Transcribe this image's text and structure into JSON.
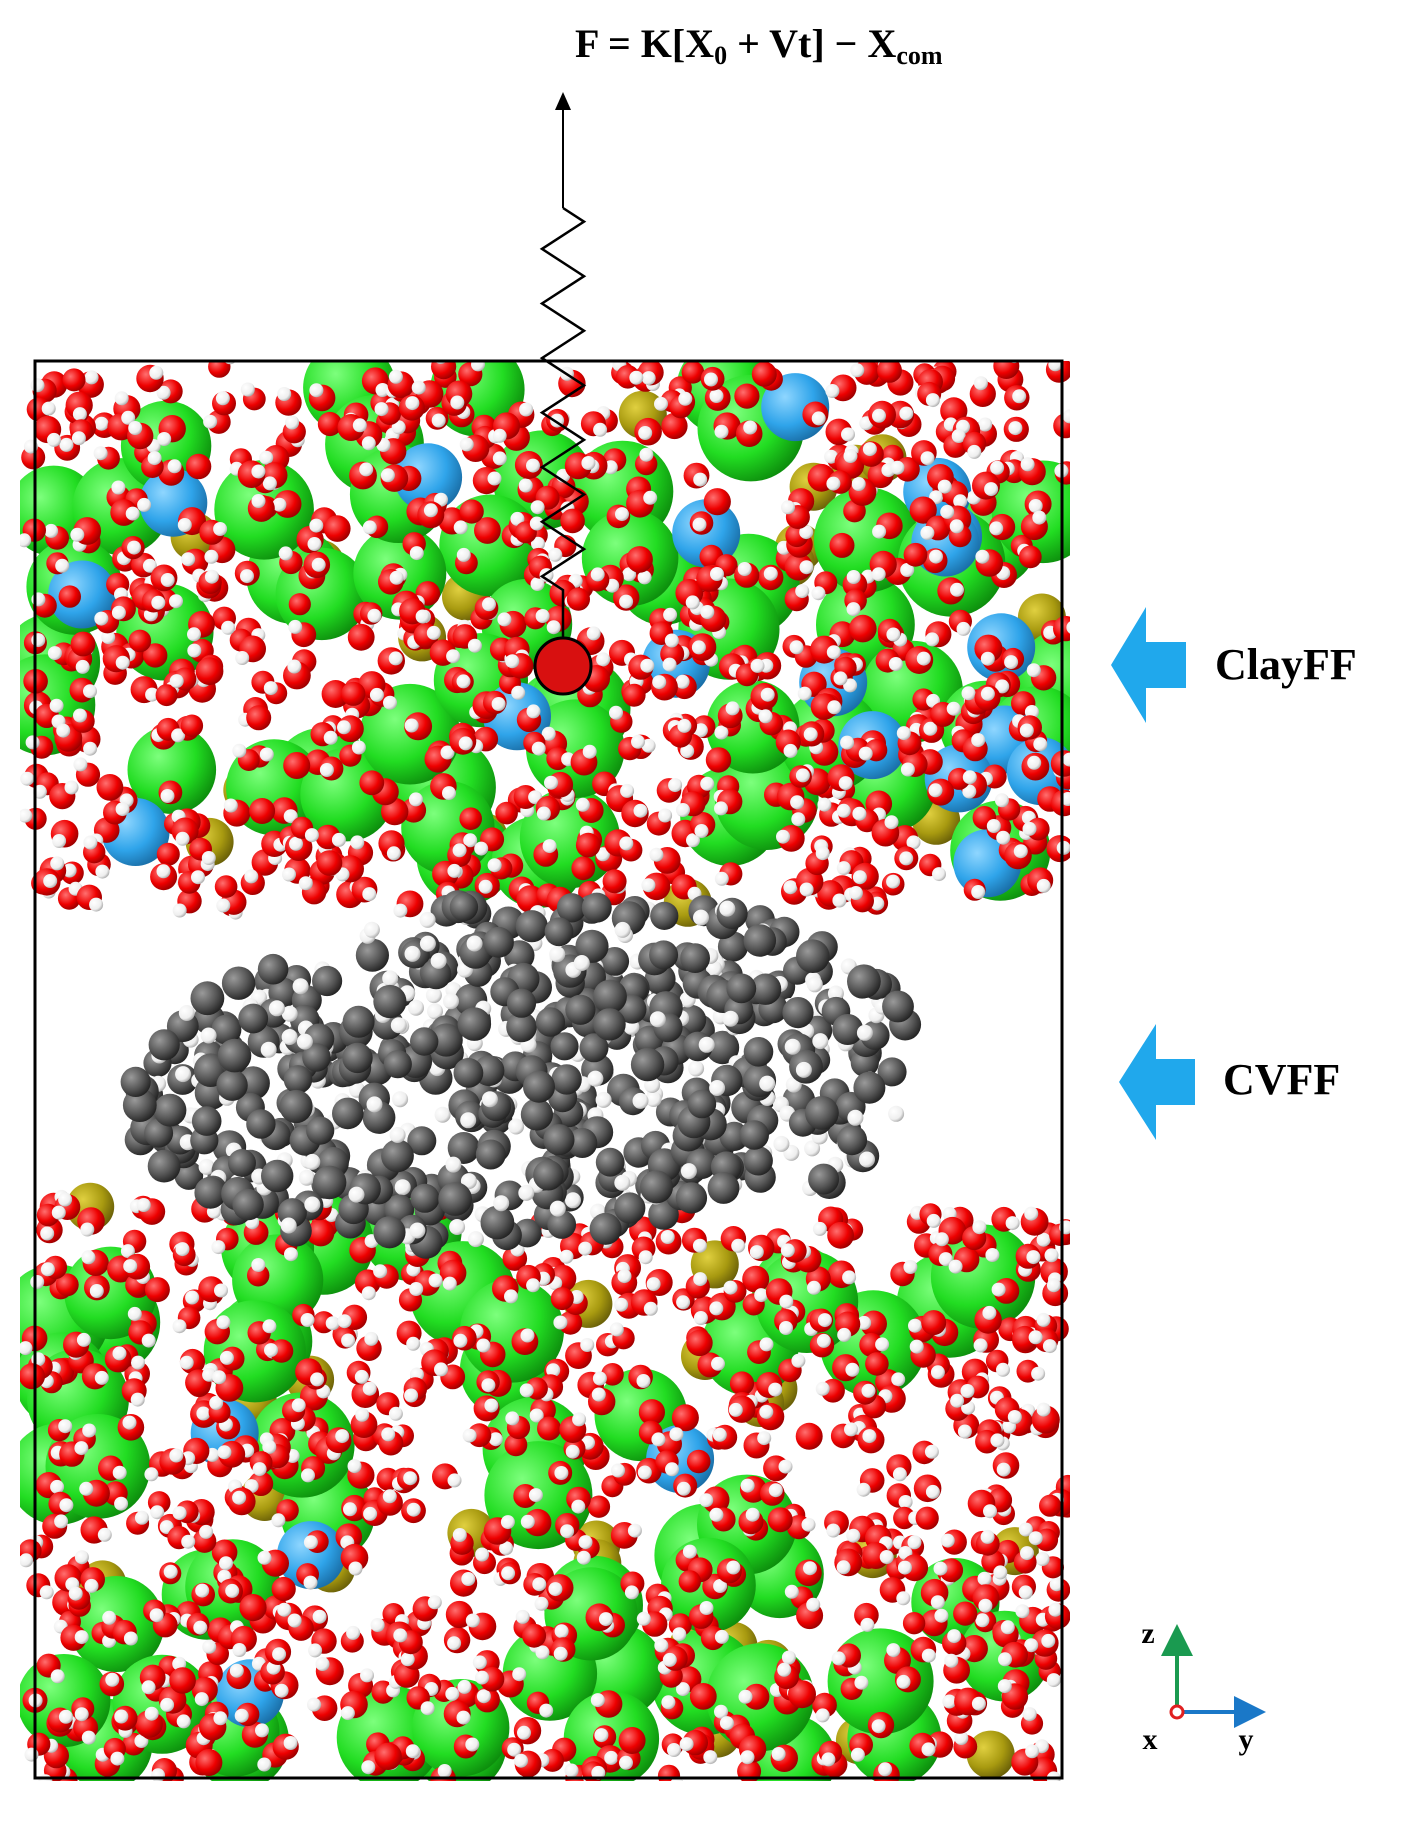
{
  "formula": {
    "text1": "F = K[X",
    "sub1": "0",
    "text2": " + Vt] − X",
    "sub2": "com"
  },
  "labels": [
    "ClayFF",
    "CVFF"
  ],
  "axes": {
    "z": "z",
    "x": "x",
    "y": "y"
  }
}
